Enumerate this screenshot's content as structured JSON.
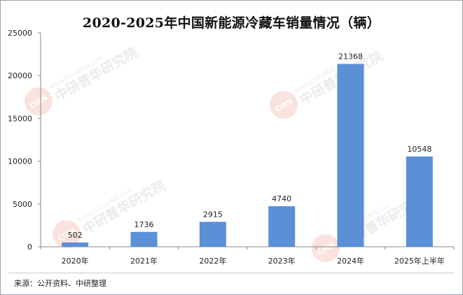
{
  "chart_data": {
    "type": "bar",
    "title": "2020-2025年中国新能源冷藏车销量情况（辆）",
    "categories": [
      "2020年",
      "2021年",
      "2022年",
      "2023年",
      "2024年",
      "2025年上半年"
    ],
    "values": [
      502,
      1736,
      2915,
      4740,
      21368,
      10548
    ],
    "data_labels": [
      "502",
      "1736",
      "2915",
      "4740",
      "21368",
      "10548"
    ],
    "y_ticks": [
      0,
      5000,
      10000,
      15000,
      20000,
      25000
    ],
    "y_tick_labels": [
      "0",
      "5000",
      "10000",
      "15000",
      "20000",
      "25000"
    ],
    "ylim": [
      0,
      25000
    ],
    "xlabel": "",
    "ylabel": "",
    "grid": false,
    "bar_color": "#5b8fd6"
  },
  "footer": {
    "source": "来源：公开资料、中研整理"
  },
  "watermark": {
    "text": "中研普华研究院",
    "url_text": "www.ChinaIRN.com",
    "logo_text": "CIRN"
  }
}
